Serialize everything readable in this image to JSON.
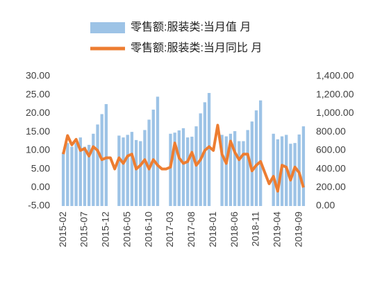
{
  "chart_data": {
    "type": "bar_line",
    "categories": [
      "2015-02",
      null,
      null,
      null,
      null,
      "2015-07",
      null,
      null,
      null,
      null,
      "2015-12",
      null,
      null,
      null,
      null,
      "2016-05",
      null,
      null,
      null,
      null,
      "2016-10",
      null,
      null,
      null,
      null,
      "2017-03",
      null,
      null,
      null,
      null,
      "2017-08",
      null,
      null,
      null,
      null,
      "2018-01",
      null,
      null,
      null,
      null,
      "2018-06",
      null,
      null,
      null,
      null,
      "2018-11",
      null,
      null,
      null,
      null,
      "2019-04",
      null,
      null,
      null,
      null,
      "2019-09",
      null
    ],
    "series": [
      {
        "name": "零售额:服装类:当月值 月",
        "color": "#9dc3e6",
        "kind": "bar",
        "axis": "y2",
        "values": [
          580,
          680,
          640,
          680,
          740,
          640,
          660,
          780,
          880,
          992,
          1100,
          null,
          null,
          760,
          740,
          768,
          800,
          712,
          700,
          820,
          932,
          1040,
          1180,
          null,
          null,
          780,
          792,
          816,
          840,
          740,
          748,
          860,
          1000,
          1120,
          1220,
          null,
          null,
          768,
          752,
          780,
          808,
          700,
          700,
          820,
          912,
          1032,
          1140,
          null,
          null,
          780,
          720,
          752,
          768,
          672,
          680,
          772,
          860
        ]
      },
      {
        "name": "零售额:服装类:当月同比 月",
        "color": "#ed7d31",
        "kind": "line",
        "values": [
          9,
          14,
          11.5,
          13,
          10,
          10.5,
          8.5,
          11,
          10,
          7.5,
          8,
          8,
          5,
          8,
          6.5,
          8.5,
          9,
          5,
          6,
          7.5,
          5,
          7.5,
          6,
          5,
          5,
          5.5,
          12,
          8,
          6.5,
          7,
          9.5,
          6,
          7.5,
          10,
          11,
          10,
          16.8,
          9,
          6.5,
          12.5,
          9.5,
          7.5,
          9,
          9,
          4.5,
          6,
          7,
          4,
          1,
          3,
          -1,
          6,
          5.5,
          2,
          5.5,
          4,
          0
        ]
      }
    ],
    "ylim": [
      -5,
      30
    ],
    "yticks": [
      {
        "value": -5,
        "label": "-5.00"
      },
      {
        "value": 0,
        "label": "0.00"
      },
      {
        "value": 5,
        "label": "5.00"
      },
      {
        "value": 10,
        "label": "10.00"
      },
      {
        "value": 15,
        "label": "15.00"
      },
      {
        "value": 20,
        "label": "20.00"
      },
      {
        "value": 25,
        "label": "25.00"
      },
      {
        "value": 30,
        "label": "30.00"
      }
    ],
    "y2lim": [
      0,
      1400
    ],
    "y2ticks": [
      {
        "value": 0,
        "label": "0.00"
      },
      {
        "value": 200,
        "label": "200.00"
      },
      {
        "value": 400,
        "label": "400.00"
      },
      {
        "value": 600,
        "label": "600.00"
      },
      {
        "value": 800,
        "label": "800.00"
      },
      {
        "value": 1000,
        "label": "1,000.00"
      },
      {
        "value": 1200,
        "label": "1,200.00"
      },
      {
        "value": 1400,
        "label": "1,400.00"
      }
    ]
  }
}
